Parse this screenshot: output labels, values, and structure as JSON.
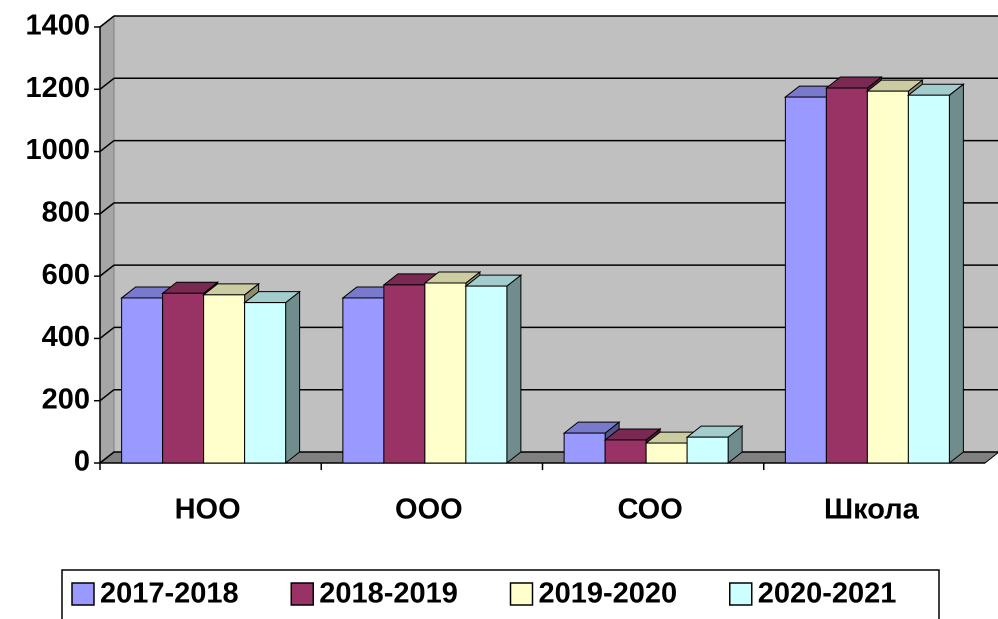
{
  "chart_data": {
    "type": "bar3d",
    "categories": [
      "НОО",
      "ООО",
      "СОО",
      "Школа"
    ],
    "series": [
      {
        "name": "2017-2018",
        "color": "#9999ff",
        "values": [
          530,
          530,
          96,
          1175
        ]
      },
      {
        "name": "2018-2019",
        "color": "#993366",
        "values": [
          545,
          572,
          74,
          1204
        ]
      },
      {
        "name": "2019-2020",
        "color": "#ffffcc",
        "values": [
          540,
          578,
          64,
          1194
        ]
      },
      {
        "name": "2020-2021",
        "color": "#ccffff",
        "values": [
          515,
          568,
          83,
          1181
        ]
      }
    ],
    "ylim": [
      0,
      1400
    ],
    "yticks": [
      0,
      200,
      400,
      600,
      800,
      1000,
      1200,
      1400
    ],
    "grid": true
  }
}
